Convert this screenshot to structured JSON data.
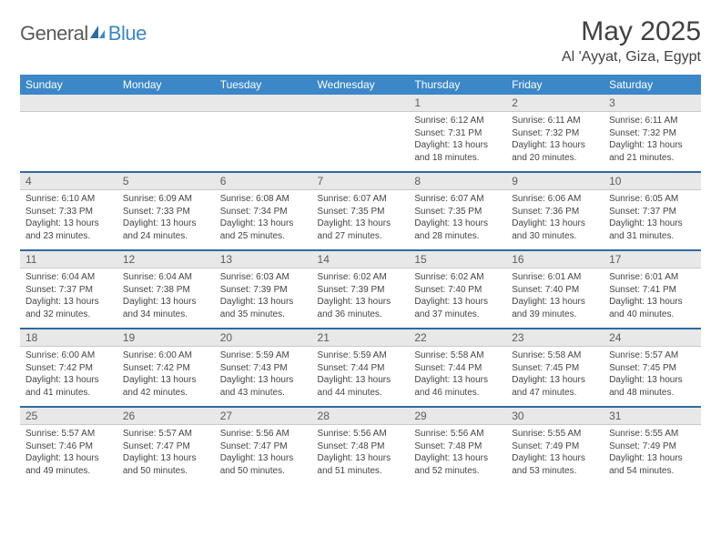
{
  "brand": {
    "name1": "General",
    "name2": "Blue"
  },
  "title": "May 2025",
  "location": "Al 'Ayyat, Giza, Egypt",
  "colors": {
    "header_bg": "#3b87c8",
    "header_text": "#ffffff",
    "daynum_bg": "#e8e8e8",
    "daynum_text": "#5c5c5c",
    "separator": "#2f6aa0",
    "body_text": "#444444",
    "title_text": "#414141"
  },
  "typography": {
    "title_fontsize": 30,
    "location_fontsize": 16,
    "header_fontsize": 12,
    "daynum_fontsize": 12,
    "cell_fontsize": 10
  },
  "days_of_week": [
    "Sunday",
    "Monday",
    "Tuesday",
    "Wednesday",
    "Thursday",
    "Friday",
    "Saturday"
  ],
  "weeks": [
    [
      {
        "n": "",
        "sr": "",
        "ss": "",
        "dl": ""
      },
      {
        "n": "",
        "sr": "",
        "ss": "",
        "dl": ""
      },
      {
        "n": "",
        "sr": "",
        "ss": "",
        "dl": ""
      },
      {
        "n": "",
        "sr": "",
        "ss": "",
        "dl": ""
      },
      {
        "n": "1",
        "sr": "Sunrise: 6:12 AM",
        "ss": "Sunset: 7:31 PM",
        "dl": "Daylight: 13 hours and 18 minutes."
      },
      {
        "n": "2",
        "sr": "Sunrise: 6:11 AM",
        "ss": "Sunset: 7:32 PM",
        "dl": "Daylight: 13 hours and 20 minutes."
      },
      {
        "n": "3",
        "sr": "Sunrise: 6:11 AM",
        "ss": "Sunset: 7:32 PM",
        "dl": "Daylight: 13 hours and 21 minutes."
      }
    ],
    [
      {
        "n": "4",
        "sr": "Sunrise: 6:10 AM",
        "ss": "Sunset: 7:33 PM",
        "dl": "Daylight: 13 hours and 23 minutes."
      },
      {
        "n": "5",
        "sr": "Sunrise: 6:09 AM",
        "ss": "Sunset: 7:33 PM",
        "dl": "Daylight: 13 hours and 24 minutes."
      },
      {
        "n": "6",
        "sr": "Sunrise: 6:08 AM",
        "ss": "Sunset: 7:34 PM",
        "dl": "Daylight: 13 hours and 25 minutes."
      },
      {
        "n": "7",
        "sr": "Sunrise: 6:07 AM",
        "ss": "Sunset: 7:35 PM",
        "dl": "Daylight: 13 hours and 27 minutes."
      },
      {
        "n": "8",
        "sr": "Sunrise: 6:07 AM",
        "ss": "Sunset: 7:35 PM",
        "dl": "Daylight: 13 hours and 28 minutes."
      },
      {
        "n": "9",
        "sr": "Sunrise: 6:06 AM",
        "ss": "Sunset: 7:36 PM",
        "dl": "Daylight: 13 hours and 30 minutes."
      },
      {
        "n": "10",
        "sr": "Sunrise: 6:05 AM",
        "ss": "Sunset: 7:37 PM",
        "dl": "Daylight: 13 hours and 31 minutes."
      }
    ],
    [
      {
        "n": "11",
        "sr": "Sunrise: 6:04 AM",
        "ss": "Sunset: 7:37 PM",
        "dl": "Daylight: 13 hours and 32 minutes."
      },
      {
        "n": "12",
        "sr": "Sunrise: 6:04 AM",
        "ss": "Sunset: 7:38 PM",
        "dl": "Daylight: 13 hours and 34 minutes."
      },
      {
        "n": "13",
        "sr": "Sunrise: 6:03 AM",
        "ss": "Sunset: 7:39 PM",
        "dl": "Daylight: 13 hours and 35 minutes."
      },
      {
        "n": "14",
        "sr": "Sunrise: 6:02 AM",
        "ss": "Sunset: 7:39 PM",
        "dl": "Daylight: 13 hours and 36 minutes."
      },
      {
        "n": "15",
        "sr": "Sunrise: 6:02 AM",
        "ss": "Sunset: 7:40 PM",
        "dl": "Daylight: 13 hours and 37 minutes."
      },
      {
        "n": "16",
        "sr": "Sunrise: 6:01 AM",
        "ss": "Sunset: 7:40 PM",
        "dl": "Daylight: 13 hours and 39 minutes."
      },
      {
        "n": "17",
        "sr": "Sunrise: 6:01 AM",
        "ss": "Sunset: 7:41 PM",
        "dl": "Daylight: 13 hours and 40 minutes."
      }
    ],
    [
      {
        "n": "18",
        "sr": "Sunrise: 6:00 AM",
        "ss": "Sunset: 7:42 PM",
        "dl": "Daylight: 13 hours and 41 minutes."
      },
      {
        "n": "19",
        "sr": "Sunrise: 6:00 AM",
        "ss": "Sunset: 7:42 PM",
        "dl": "Daylight: 13 hours and 42 minutes."
      },
      {
        "n": "20",
        "sr": "Sunrise: 5:59 AM",
        "ss": "Sunset: 7:43 PM",
        "dl": "Daylight: 13 hours and 43 minutes."
      },
      {
        "n": "21",
        "sr": "Sunrise: 5:59 AM",
        "ss": "Sunset: 7:44 PM",
        "dl": "Daylight: 13 hours and 44 minutes."
      },
      {
        "n": "22",
        "sr": "Sunrise: 5:58 AM",
        "ss": "Sunset: 7:44 PM",
        "dl": "Daylight: 13 hours and 46 minutes."
      },
      {
        "n": "23",
        "sr": "Sunrise: 5:58 AM",
        "ss": "Sunset: 7:45 PM",
        "dl": "Daylight: 13 hours and 47 minutes."
      },
      {
        "n": "24",
        "sr": "Sunrise: 5:57 AM",
        "ss": "Sunset: 7:45 PM",
        "dl": "Daylight: 13 hours and 48 minutes."
      }
    ],
    [
      {
        "n": "25",
        "sr": "Sunrise: 5:57 AM",
        "ss": "Sunset: 7:46 PM",
        "dl": "Daylight: 13 hours and 49 minutes."
      },
      {
        "n": "26",
        "sr": "Sunrise: 5:57 AM",
        "ss": "Sunset: 7:47 PM",
        "dl": "Daylight: 13 hours and 50 minutes."
      },
      {
        "n": "27",
        "sr": "Sunrise: 5:56 AM",
        "ss": "Sunset: 7:47 PM",
        "dl": "Daylight: 13 hours and 50 minutes."
      },
      {
        "n": "28",
        "sr": "Sunrise: 5:56 AM",
        "ss": "Sunset: 7:48 PM",
        "dl": "Daylight: 13 hours and 51 minutes."
      },
      {
        "n": "29",
        "sr": "Sunrise: 5:56 AM",
        "ss": "Sunset: 7:48 PM",
        "dl": "Daylight: 13 hours and 52 minutes."
      },
      {
        "n": "30",
        "sr": "Sunrise: 5:55 AM",
        "ss": "Sunset: 7:49 PM",
        "dl": "Daylight: 13 hours and 53 minutes."
      },
      {
        "n": "31",
        "sr": "Sunrise: 5:55 AM",
        "ss": "Sunset: 7:49 PM",
        "dl": "Daylight: 13 hours and 54 minutes."
      }
    ]
  ]
}
